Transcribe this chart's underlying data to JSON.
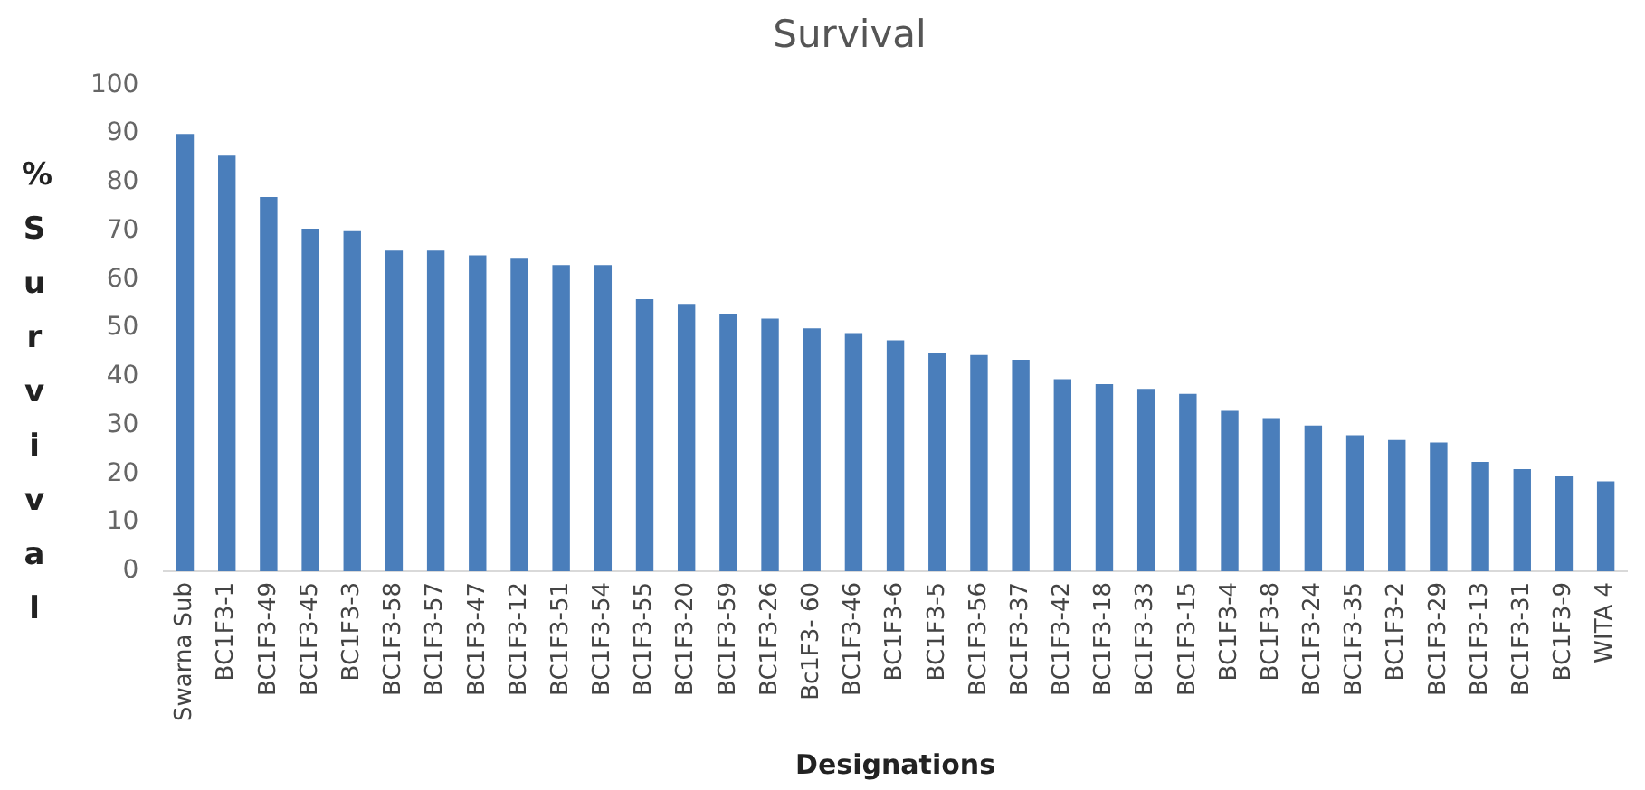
{
  "chart_data": {
    "type": "bar",
    "title": "Survival",
    "xlabel": "Designations",
    "ylabel": "% Survival",
    "categories": [
      "Swarna Sub",
      "BC1F3-1",
      "BC1F3-49",
      "BC1F3-45",
      "BC1F3-3",
      "BC1F3-58",
      "BC1F3-57",
      "BC1F3-47",
      "BC1F3-12",
      "BC1F3-51",
      "BC1F3-54",
      "BC1F3-55",
      "BC1F3-20",
      "BC1F3-59",
      "BC1F3-26",
      "Bc1F3- 60",
      "BC1F3-46",
      "BC1F3-6",
      "BC1F3-5",
      "BC1F3-56",
      "BC1F3-37",
      "BC1F3-42",
      "BC1F3-18",
      "BC1F3-33",
      "BC1F3-15",
      "BC1F3-4",
      "BC1F3-8",
      "BC1F3-24",
      "BC1F3-35",
      "BC1F3-2",
      "BC1F3-29",
      "BC1F3-13",
      "BC1F3-31",
      "BC1F3-9",
      "WITA 4"
    ],
    "values": [
      90,
      85.5,
      77,
      70.5,
      70,
      66,
      66,
      65,
      64.5,
      63,
      63,
      56,
      55,
      53,
      52,
      50,
      49,
      47.5,
      45,
      44.5,
      43.5,
      39.5,
      38.5,
      37.5,
      36.5,
      33,
      31.5,
      30,
      28,
      27,
      26.5,
      22.5,
      21,
      19.5,
      18.5
    ],
    "color": "#4a7ebb",
    "ylim": [
      0,
      100
    ],
    "yticks": [
      0,
      10,
      20,
      30,
      40,
      50,
      60,
      70,
      80,
      90,
      100
    ],
    "grid": false,
    "legend": false
  }
}
